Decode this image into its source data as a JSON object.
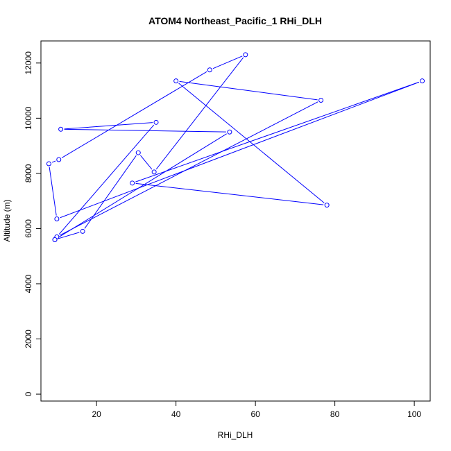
{
  "chart_data": {
    "type": "line",
    "title": "ATOM4 Northeast_Pacific_1 RHi_DLH",
    "xlabel": "RHi_DLH",
    "ylabel": "Altitude (m)",
    "xlim": [
      6,
      104
    ],
    "ylim": [
      -250,
      12800
    ],
    "x_ticks": [
      20,
      40,
      60,
      80,
      100
    ],
    "y_ticks": [
      0,
      2000,
      4000,
      6000,
      8000,
      10000,
      12000
    ],
    "grid": false,
    "legend": "none",
    "series_color": "#0000ff",
    "series": [
      {
        "x": [
          9.5,
          16.5,
          30.5,
          34.5,
          57.5,
          48.5,
          10.5,
          8.0,
          10.0,
          102.0,
          29.0,
          78.0,
          40.0,
          76.5,
          10.0,
          35.0,
          11.0,
          53.5,
          9.5
        ],
        "y": [
          5600,
          5900,
          8750,
          8050,
          12300,
          11750,
          8500,
          8350,
          6350,
          11350,
          7650,
          6850,
          11350,
          10650,
          5700,
          9850,
          9600,
          9500,
          5600
        ]
      }
    ]
  }
}
